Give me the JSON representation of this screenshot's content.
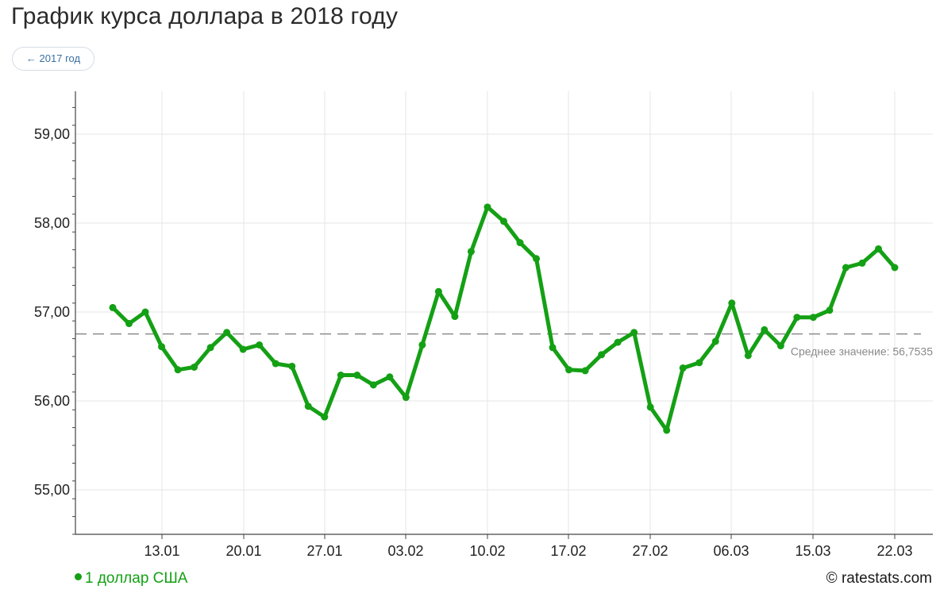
{
  "header": {
    "title": "График курса доллара в 2018 году",
    "prev_year_label": "← 2017 год"
  },
  "legend": {
    "series_label": "1 доллар США"
  },
  "credits": "© ratestats.com",
  "colors": {
    "series": "#14a014",
    "grid": "#e6e6e6",
    "avg_line": "#8c8c8c",
    "axis": "#444444"
  },
  "chart_data": {
    "type": "line",
    "title": "График курса доллара в 2018 году",
    "ylim": [
      54.5,
      59.5
    ],
    "yticks": [
      55,
      56,
      57,
      58,
      59
    ],
    "ytick_labels": [
      "55,00",
      "56,00",
      "57,00",
      "58,00",
      "59,00"
    ],
    "xtick_labels": [
      "13.01",
      "20.01",
      "27.01",
      "03.02",
      "10.02",
      "17.02",
      "27.02",
      "06.03",
      "15.03",
      "22.03"
    ],
    "grid": true,
    "legend_position": "bottom-left",
    "average": {
      "value": 56.7535,
      "label": "Среднее значение: 56,7535"
    },
    "series": [
      {
        "name": "1 доллар США",
        "x": [
          "10.01",
          "11.01",
          "12.01",
          "13.01",
          "16.01",
          "17.01",
          "18.01",
          "19.01",
          "20.01",
          "23.01",
          "24.01",
          "25.01",
          "26.01",
          "27.01",
          "30.01",
          "31.01",
          "01.02",
          "02.02",
          "03.02",
          "06.02",
          "07.02",
          "08.02",
          "09.02",
          "10.02",
          "13.02",
          "14.02",
          "15.02",
          "16.02",
          "17.02",
          "20.02",
          "21.02",
          "22.02",
          "23.02",
          "27.02",
          "28.02",
          "01.03",
          "02.03",
          "03.03",
          "06.03",
          "07.03",
          "10.03",
          "13.03",
          "14.03",
          "15.03",
          "16.03",
          "17.03",
          "20.03",
          "21.03",
          "22.03"
        ],
        "values": [
          57.05,
          56.87,
          57.0,
          56.61,
          56.35,
          56.38,
          56.6,
          56.77,
          56.58,
          56.63,
          56.42,
          56.39,
          55.94,
          55.82,
          56.29,
          56.29,
          56.18,
          56.27,
          56.04,
          56.63,
          57.23,
          56.95,
          57.68,
          58.18,
          58.02,
          57.78,
          57.6,
          56.6,
          56.35,
          56.34,
          56.52,
          56.66,
          56.77,
          55.93,
          55.67,
          56.37,
          56.43,
          56.67,
          57.1,
          56.51,
          56.8,
          56.62,
          56.94,
          56.94,
          57.02,
          57.5,
          57.55,
          57.71,
          57.5
        ]
      }
    ]
  }
}
